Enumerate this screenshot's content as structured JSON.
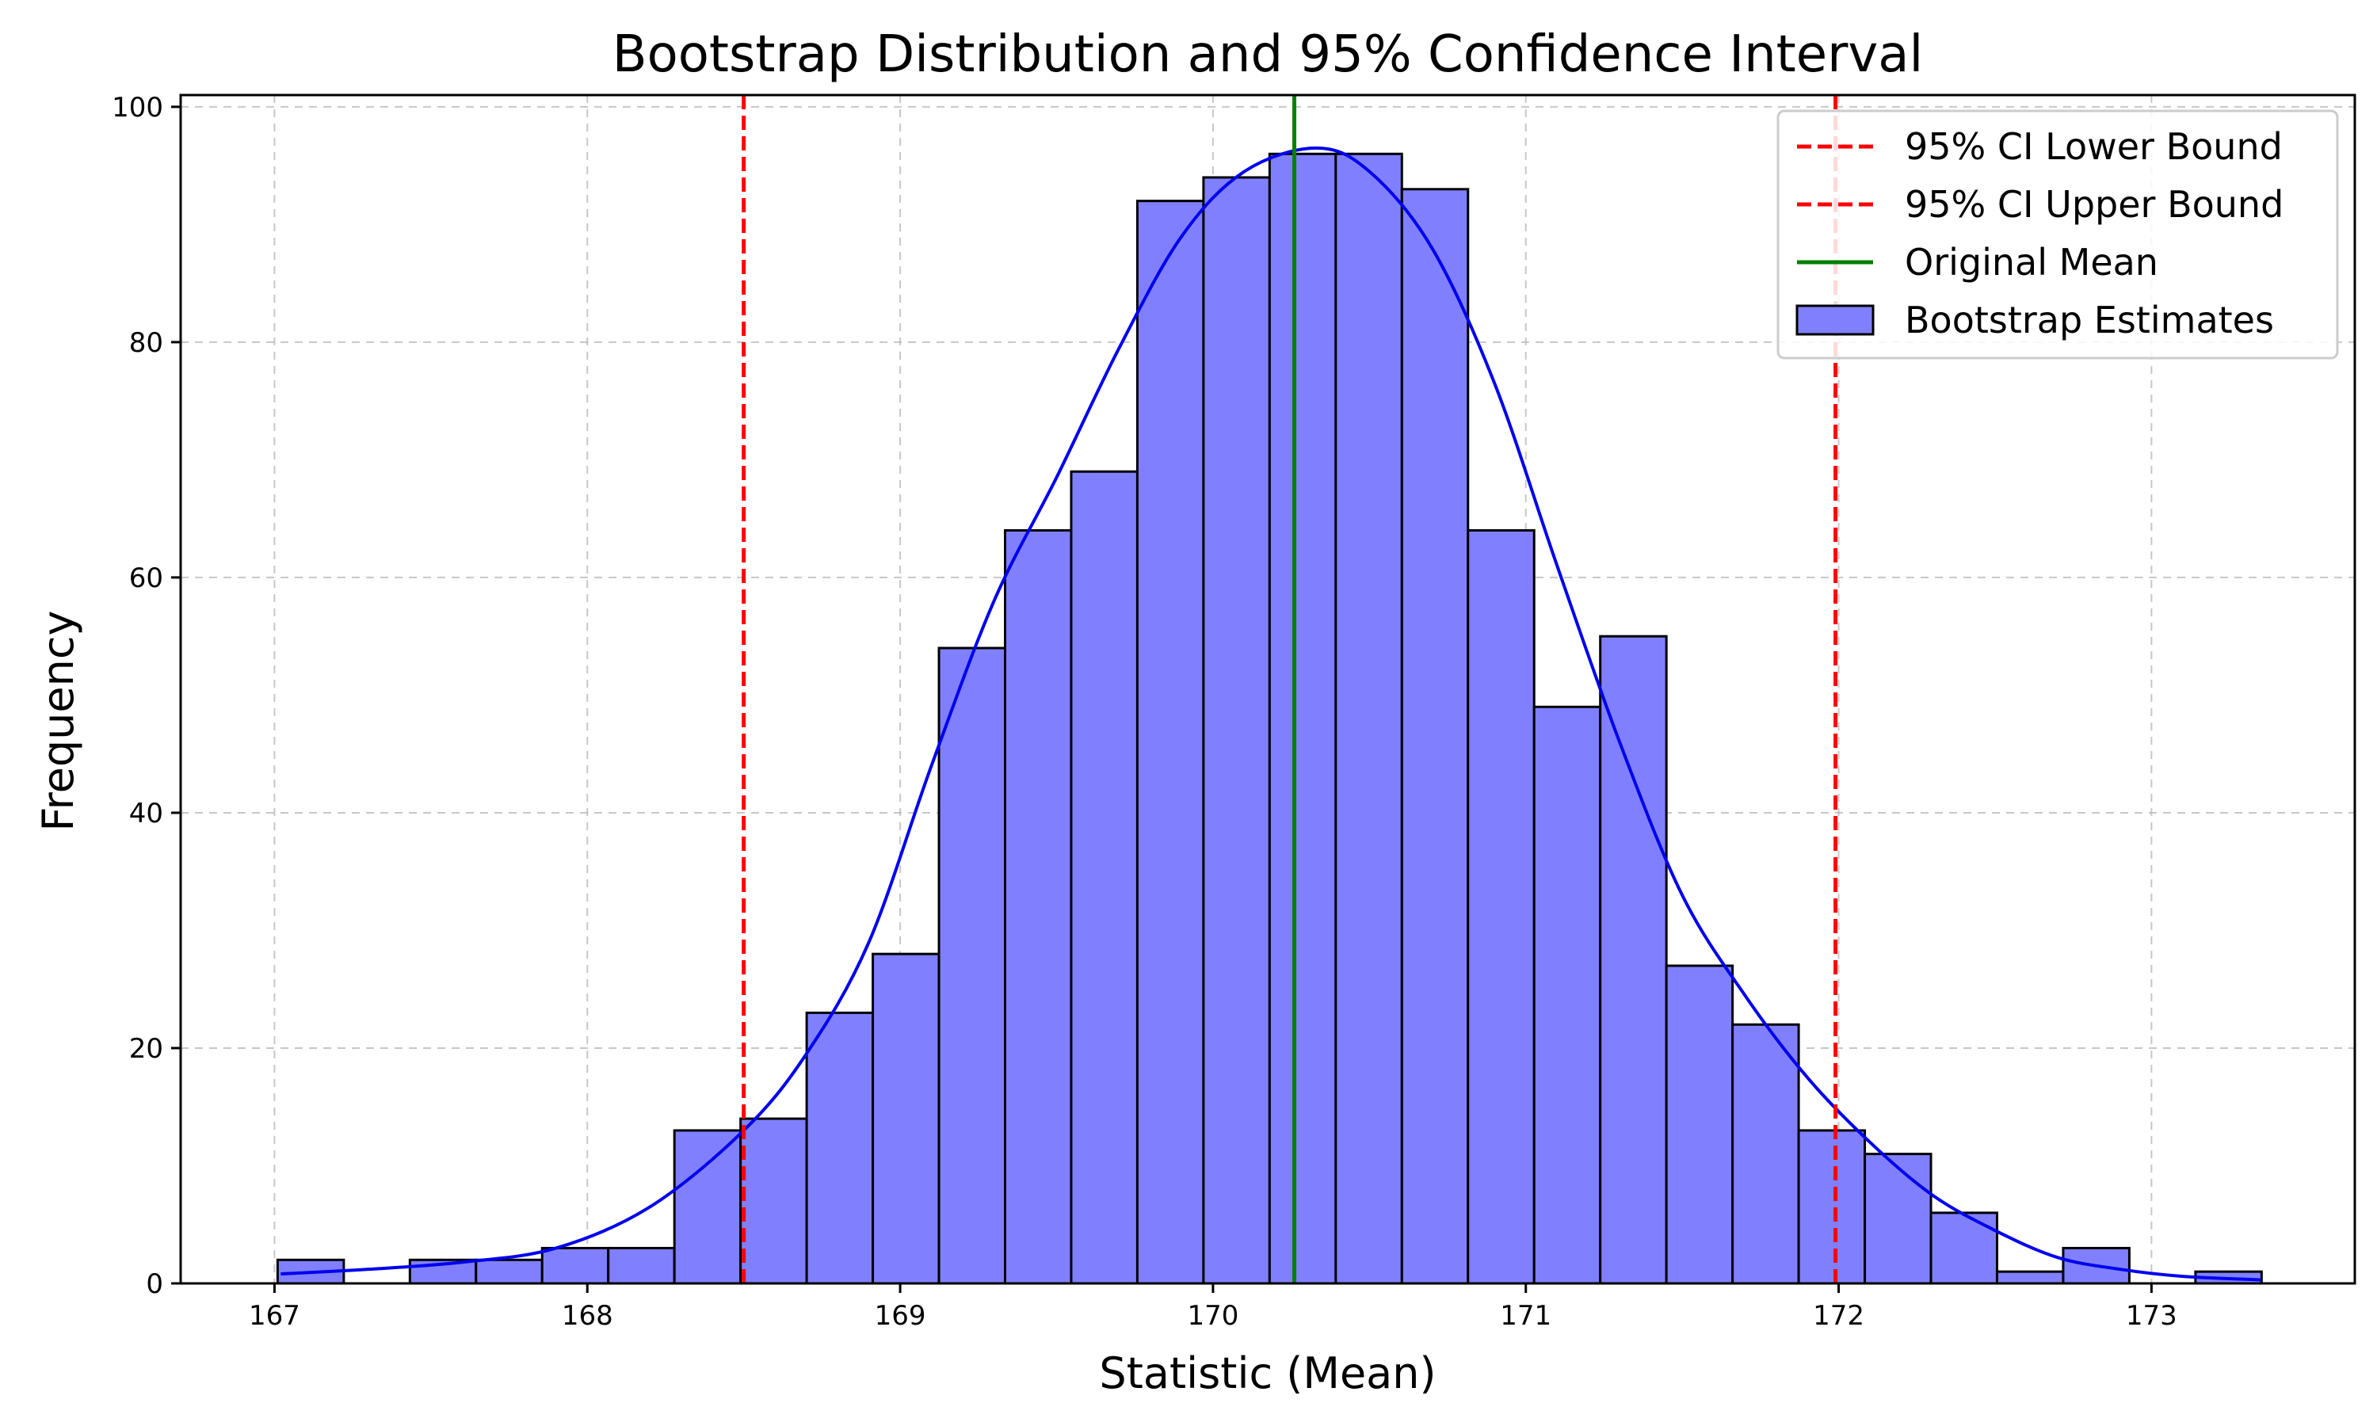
{
  "chart_data": {
    "type": "bar",
    "title": "Bootstrap Distribution and 95% Confidence Interval",
    "xlabel": "Statistic (Mean)",
    "ylabel": "Frequency",
    "xlim": [
      166.7,
      173.65
    ],
    "ylim": [
      0,
      101
    ],
    "x_ticks": [
      167,
      168,
      169,
      170,
      171,
      172,
      173
    ],
    "y_ticks": [
      0,
      20,
      40,
      60,
      80,
      100
    ],
    "grid": true,
    "legend_position": "top-right",
    "histogram": {
      "name": "Bootstrap Estimates",
      "bin_start": 167.01,
      "bin_width": 0.2114,
      "counts": [
        2,
        0,
        2,
        2,
        3,
        3,
        13,
        14,
        23,
        28,
        54,
        64,
        69,
        92,
        94,
        96,
        96,
        93,
        64,
        49,
        55,
        27,
        22,
        13,
        11,
        6,
        1,
        3,
        0,
        1
      ],
      "color": "#8080ff"
    },
    "kde": {
      "color": "#0000ee",
      "x": [
        167.02,
        167.3,
        167.6,
        167.9,
        168.2,
        168.5,
        168.7,
        168.9,
        169.1,
        169.3,
        169.5,
        169.7,
        169.9,
        170.1,
        170.33,
        170.5,
        170.7,
        170.9,
        171.1,
        171.3,
        171.5,
        171.7,
        171.9,
        172.1,
        172.3,
        172.5,
        172.7,
        172.9,
        173.1,
        173.35
      ],
      "y": [
        0.8,
        1.2,
        1.8,
        3.0,
        6.5,
        13.0,
        19.5,
        29.0,
        44.0,
        58.0,
        68.5,
        79.5,
        89.0,
        94.5,
        96.5,
        94.5,
        88.0,
        76.5,
        61.0,
        46.0,
        33.0,
        24.5,
        17.5,
        12.0,
        7.5,
        4.5,
        2.2,
        1.2,
        0.6,
        0.3
      ]
    },
    "reference_lines": [
      {
        "name": "95% CI Lower Bound",
        "x": 168.5,
        "color": "#ff0000",
        "style": "dashed"
      },
      {
        "name": "95% CI Upper Bound",
        "x": 171.99,
        "color": "#ff0000",
        "style": "dashed"
      },
      {
        "name": "Original Mean",
        "x": 170.26,
        "color": "#008000",
        "style": "solid"
      }
    ],
    "legend": [
      {
        "label": "95% CI Lower Bound",
        "kind": "dashed-line",
        "color": "#ff0000"
      },
      {
        "label": "95% CI Upper Bound",
        "kind": "dashed-line",
        "color": "#ff0000"
      },
      {
        "label": "Original Mean",
        "kind": "solid-line",
        "color": "#008000"
      },
      {
        "label": "Bootstrap Estimates",
        "kind": "patch",
        "color": "#8080ff"
      }
    ]
  }
}
